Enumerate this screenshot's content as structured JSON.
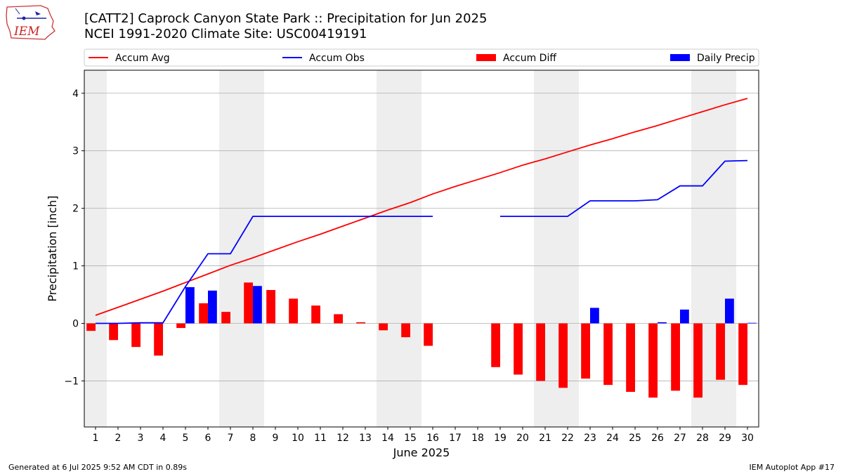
{
  "header": {
    "logo_text": "IEM",
    "title_line1": "[CATT2] Caprock Canyon State Park :: Precipitation for Jun 2025",
    "title_line2": "NCEI 1991-2020 Climate Site: USC00419191"
  },
  "footer": {
    "generated": "Generated at 6 Jul 2025 9:52 AM CDT in 0.89s",
    "app": "IEM Autoplot App #17"
  },
  "colors": {
    "avg": "#ff0000",
    "obs": "#0000ff",
    "diff": "#ff0000",
    "daily": "#0000ff",
    "weekend_shade": "#eeeeee",
    "grid": "#b0b0b0"
  },
  "chart_data": {
    "type": "bar",
    "xlabel": "June 2025",
    "ylabel": "Precipitation [inch]",
    "ylim": [
      -1.8,
      4.4
    ],
    "yticks": [
      -1,
      0,
      1,
      2,
      3,
      4
    ],
    "xlim": [
      0.5,
      30.5
    ],
    "grid": "horizontal",
    "legend_placement": "top",
    "legend": [
      "Accum Avg",
      "Accum Obs",
      "Accum Diff",
      "Daily Precip"
    ],
    "categories": [
      "1",
      "2",
      "3",
      "4",
      "5",
      "6",
      "7",
      "8",
      "9",
      "10",
      "11",
      "12",
      "13",
      "14",
      "15",
      "16",
      "17",
      "18",
      "19",
      "20",
      "21",
      "22",
      "23",
      "24",
      "25",
      "26",
      "27",
      "28",
      "29",
      "30"
    ],
    "weekend_ranges": [
      [
        0.5,
        1.5
      ],
      [
        6.5,
        8.5
      ],
      [
        13.5,
        15.5
      ],
      [
        20.5,
        22.5
      ],
      [
        27.5,
        29.5
      ]
    ],
    "series": [
      {
        "name": "Accum Avg",
        "kind": "line",
        "values": [
          0.14,
          0.28,
          0.42,
          0.56,
          0.71,
          0.86,
          1.01,
          1.14,
          1.28,
          1.42,
          1.55,
          1.69,
          1.83,
          1.97,
          2.1,
          2.25,
          2.38,
          2.5,
          2.62,
          2.75,
          2.86,
          2.98,
          3.1,
          3.21,
          3.33,
          3.44,
          3.56,
          3.68,
          3.8,
          3.91
        ]
      },
      {
        "name": "Accum Obs",
        "kind": "line",
        "values": [
          0.0,
          0.0,
          0.01,
          0.01,
          0.64,
          1.21,
          1.21,
          1.86,
          1.86,
          1.86,
          1.86,
          1.86,
          1.86,
          1.86,
          1.86,
          1.86,
          null,
          null,
          1.86,
          1.86,
          1.86,
          1.86,
          2.13,
          2.13,
          2.13,
          2.15,
          2.39,
          2.39,
          2.82,
          2.83
        ]
      },
      {
        "name": "Accum Diff",
        "kind": "bar",
        "values": [
          -0.13,
          -0.29,
          -0.41,
          -0.56,
          -0.08,
          0.35,
          0.2,
          0.71,
          0.58,
          0.43,
          0.31,
          0.16,
          0.02,
          -0.12,
          -0.24,
          -0.39,
          null,
          null,
          -0.76,
          -0.89,
          -1.0,
          -1.12,
          -0.96,
          -1.07,
          -1.19,
          -1.29,
          -1.17,
          -1.29,
          -0.98,
          -1.07
        ]
      },
      {
        "name": "Daily Precip",
        "kind": "bar",
        "values": [
          0.0,
          0.0,
          0.0,
          0.0,
          0.63,
          0.57,
          0.0,
          0.65,
          0.0,
          0.0,
          0.0,
          0.0,
          0.0,
          0.0,
          0.0,
          0.0,
          null,
          null,
          0.0,
          0.0,
          0.0,
          0.0,
          0.27,
          0.0,
          0.0,
          0.02,
          0.24,
          0.0,
          0.43,
          0.01
        ]
      }
    ]
  }
}
